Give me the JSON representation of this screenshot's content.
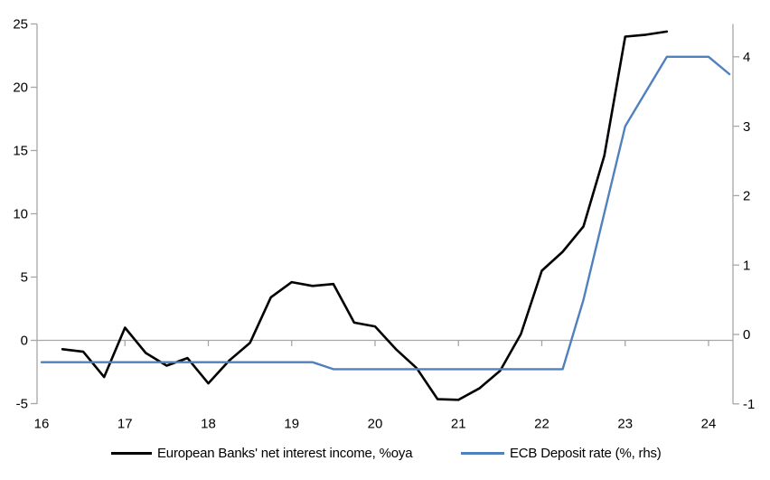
{
  "chart_data": {
    "type": "line",
    "title": "",
    "x_axis": {
      "ticks": [
        16,
        17,
        18,
        19,
        20,
        21,
        22,
        23,
        24
      ],
      "range": [
        16,
        24.35
      ],
      "unit": "year (20xx)"
    },
    "left_axis": {
      "ticks": [
        25,
        20,
        15,
        10,
        5,
        0,
        -5
      ],
      "range": [
        -5,
        25
      ]
    },
    "right_axis": {
      "ticks": [
        4,
        3,
        2,
        1,
        0,
        -1
      ],
      "range": [
        -1,
        4.47
      ]
    },
    "zero_gridline": true,
    "legend_position": "bottom",
    "series": [
      {
        "name": "European Banks' net interest income, %oya",
        "axis": "left",
        "color": "#000000",
        "points": [
          [
            16.25,
            -0.7
          ],
          [
            16.5,
            -0.9
          ],
          [
            16.75,
            -2.9
          ],
          [
            17,
            1.0
          ],
          [
            17.25,
            -1.0
          ],
          [
            17.5,
            -2.0
          ],
          [
            17.75,
            -1.4
          ],
          [
            18,
            -3.4
          ],
          [
            18.25,
            -1.6
          ],
          [
            18.5,
            -0.2
          ],
          [
            18.75,
            3.4
          ],
          [
            19,
            4.6
          ],
          [
            19.25,
            4.3
          ],
          [
            19.5,
            4.45
          ],
          [
            19.75,
            1.4
          ],
          [
            20,
            1.1
          ],
          [
            20.25,
            -0.7
          ],
          [
            20.5,
            -2.2
          ],
          [
            20.75,
            -4.65
          ],
          [
            21,
            -4.7
          ],
          [
            21.25,
            -3.8
          ],
          [
            21.5,
            -2.4
          ],
          [
            21.75,
            0.5
          ],
          [
            22,
            5.5
          ],
          [
            22.25,
            7.0
          ],
          [
            22.5,
            9.0
          ],
          [
            22.75,
            14.6
          ],
          [
            23,
            24.0
          ],
          [
            23.25,
            24.15
          ],
          [
            23.5,
            24.4
          ]
        ]
      },
      {
        "name": "ECB Deposit rate (%, rhs)",
        "axis": "right",
        "color": "#4f81bd",
        "points": [
          [
            16,
            -0.4
          ],
          [
            19.25,
            -0.4
          ],
          [
            19.5,
            -0.5
          ],
          [
            22.25,
            -0.5
          ],
          [
            22.5,
            0.5
          ],
          [
            22.75,
            1.75
          ],
          [
            23,
            3.0
          ],
          [
            23.25,
            3.5
          ],
          [
            23.5,
            4.0
          ],
          [
            23.75,
            4.0
          ],
          [
            24,
            4.0
          ],
          [
            24.25,
            3.75
          ]
        ]
      }
    ],
    "colors": {
      "axis": "#a6a6a6",
      "background": "#ffffff",
      "series_black": "#000000",
      "series_blue": "#4f81bd"
    }
  }
}
